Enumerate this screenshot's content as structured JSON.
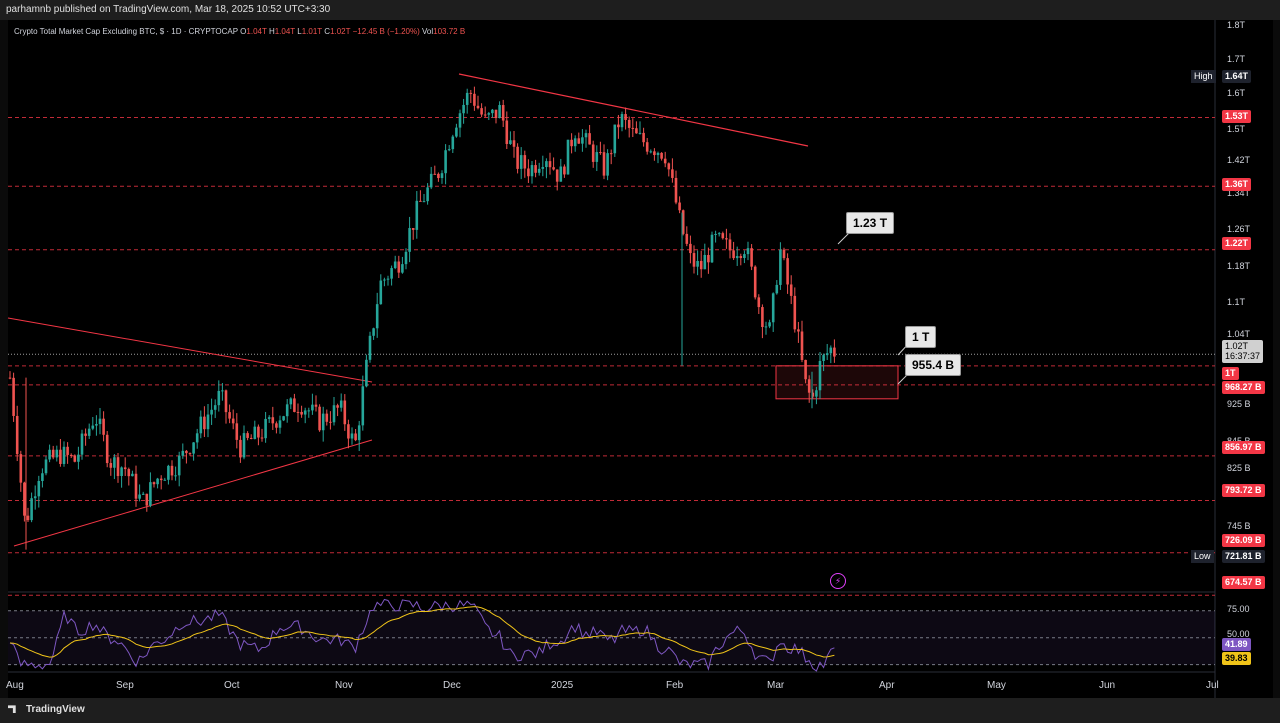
{
  "header": {
    "publisher_line": "parhamnb published on TradingView.com, Mar 18, 2025 10:52 UTC+3:30"
  },
  "footer": {
    "brand": "TradingView"
  },
  "legend": {
    "symbol": "Crypto Total Market Cap Excluding BTC, $ · 1D · CRYPTOCAP",
    "o_label": "O",
    "o_value": "1.04T",
    "h_label": "H",
    "h_value": "1.04T",
    "l_label": "L",
    "l_value": "1.01T",
    "c_label": "C",
    "c_value": "1.02T",
    "change": "−12.45 B (−1.20%)",
    "vol_label": "Vol",
    "vol_value": "103.72 B"
  },
  "callouts": {
    "c1": "1.23 T",
    "c2": "1 T",
    "c3": "955.4 B"
  },
  "price_tags": {
    "high_label": "High",
    "high_value": "1.64T",
    "low_label": "Low",
    "low_value": "721.81 B",
    "current_value": "1.02T",
    "countdown": "16:37:37",
    "level_1_53": "1.53T",
    "level_1_36": "1.36T",
    "level_1_22": "1.22T",
    "level_1T": "1T",
    "level_968": "968.27 B",
    "level_856": "856.97 B",
    "level_793": "793.72 B",
    "level_726": "726.09 B",
    "level_674": "674.57 B",
    "rsi_value": "41.89",
    "rsi_ma_value": "39.83"
  },
  "price_axis_ticks": [
    "1.8T",
    "1.7T",
    "1.6T",
    "1.5T",
    "1.42T",
    "1.34T",
    "1.26T",
    "1.18T",
    "1.1T",
    "1.04T",
    "925 B",
    "845 B",
    "825 B",
    "745 B",
    "50.00",
    "75.00"
  ],
  "time_axis": [
    "Aug",
    "Sep",
    "Oct",
    "Nov",
    "Dec",
    "2025",
    "Feb",
    "Mar",
    "Apr",
    "May",
    "Jun",
    "Jul"
  ],
  "colors": {
    "up": "#26a69a",
    "down": "#ef5350",
    "level_line": "#f23645",
    "rsi": "#7e57c2",
    "rsi_ma": "#f0c419"
  },
  "chart_data": {
    "type": "line",
    "title": "Crypto Total Market Cap Excluding BTC, $ · 1D · CRYPTOCAP",
    "x": [
      "Aug",
      "Sep",
      "Oct",
      "Nov",
      "Dec",
      "2025",
      "Feb",
      "Mar"
    ],
    "series": [
      {
        "values": [
          0.9,
          0.86,
          0.92,
          0.93,
          1.55,
          1.47,
          1.36,
          1.02
        ]
      }
    ],
    "horizontal_levels": [
      1.53,
      1.36,
      1.22,
      1.0,
      0.968,
      0.857,
      0.794,
      0.726,
      0.675
    ],
    "high": 1.64,
    "low": 0.722,
    "ylim": [
      0.67,
      1.8
    ],
    "rsi": {
      "value": 41.89,
      "ma": 39.83,
      "bands": [
        75,
        50
      ]
    }
  }
}
